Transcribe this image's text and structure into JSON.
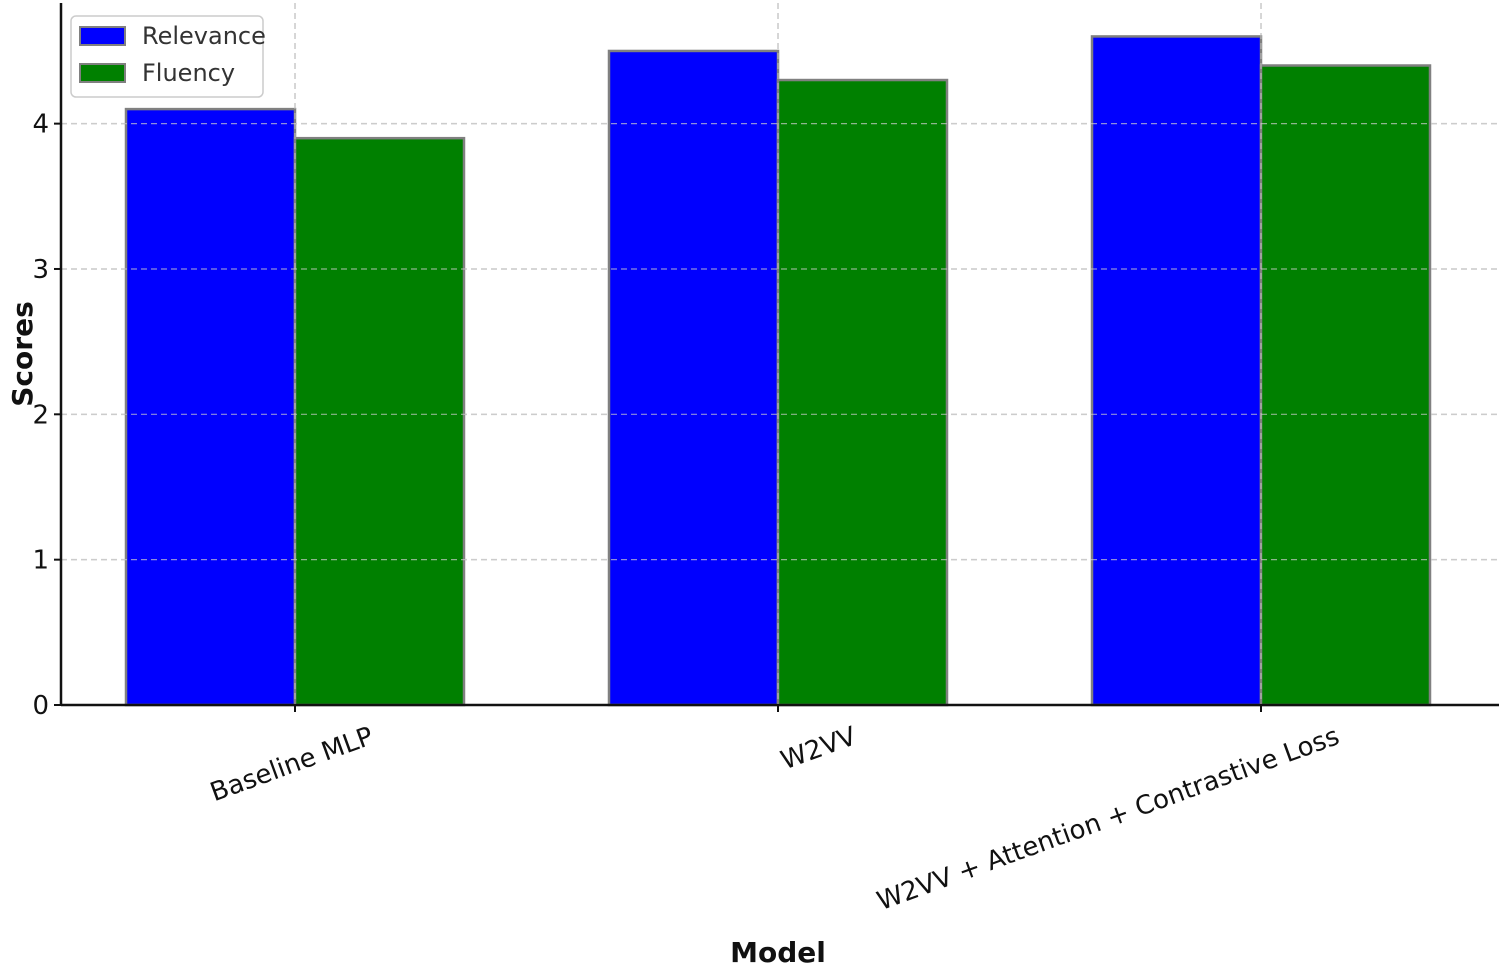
{
  "chart_data": {
    "type": "bar",
    "categories": [
      "Baseline MLP",
      "W2VV",
      "W2VV + Attention + Contrastive Loss"
    ],
    "series": [
      {
        "name": "Relevance",
        "values": [
          4.1,
          4.5,
          4.6
        ],
        "color": "#0000ff"
      },
      {
        "name": "Fluency",
        "values": [
          3.9,
          4.3,
          4.4
        ],
        "color": "#008000"
      }
    ],
    "xlabel": "Model",
    "ylabel": "Scores",
    "ylim": [
      0,
      4.83
    ],
    "yticks": [
      0,
      1,
      2,
      3,
      4
    ],
    "grid": true,
    "legend_position": "top-left",
    "bar_edge_color": "#808080",
    "grid_color": "#cccccc"
  }
}
